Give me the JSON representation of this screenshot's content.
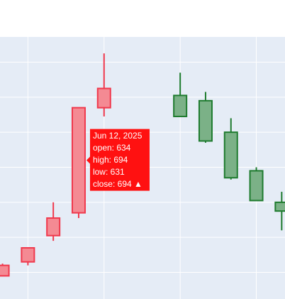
{
  "chart_data": {
    "type": "candlestick",
    "x": [
      "2025-06-09T00:00",
      "2025-06-10T00:00",
      "2025-06-11T00:00",
      "2025-06-12T00:00",
      "2025-06-13T00:00",
      "2025-06-16T00:00",
      "2025-06-17T00:00",
      "2025-06-18T00:00",
      "2025-06-19T00:00",
      "2025-06-20T00:00"
    ],
    "open": [
      598,
      606,
      621,
      634,
      694,
      701,
      698,
      680,
      658,
      640
    ],
    "high": [
      605,
      614,
      640,
      694,
      725,
      714,
      703,
      688,
      660,
      646
    ],
    "low": [
      598,
      604,
      618,
      631,
      689,
      689,
      674,
      653,
      641,
      624
    ],
    "close": [
      604,
      614,
      631,
      694,
      705,
      689,
      675,
      654,
      641,
      635
    ],
    "increasing_color": "#f0384c",
    "increasing_fill": "#f48a93",
    "decreasing_color": "#1e7b2e",
    "decreasing_fill": "#7bb187",
    "xlim": [
      "2025-06-08T21:36",
      "2025-06-20T03:07"
    ],
    "xticks": [
      "2025-06-10T00:00",
      "2025-06-13T00:00",
      "2025-06-16T00:00",
      "2025-06-19T00:00"
    ],
    "ylim": [
      584.8,
      734.4
    ],
    "yticks": [
      600,
      620,
      640,
      660,
      680,
      700,
      720
    ],
    "grid": true,
    "tooltip": {
      "index": 3,
      "date": "Jun 12, 2025",
      "open": "open: 634",
      "high": "high: 694",
      "low": "low: 631",
      "close": "close: 694 ▲",
      "color": "#ff1111"
    }
  }
}
